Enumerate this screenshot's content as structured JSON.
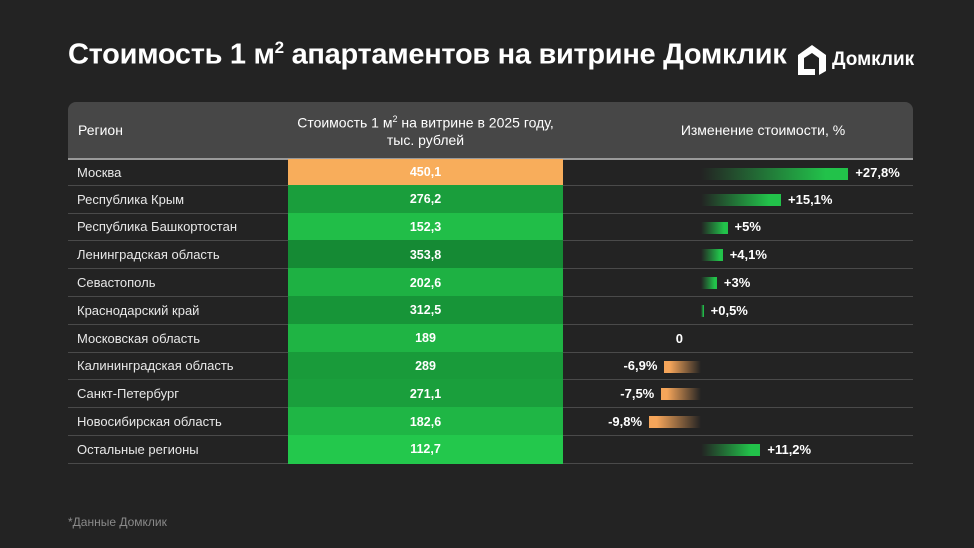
{
  "header": {
    "title_pre": "Стоимость 1 м",
    "title_sup": "2",
    "title_post": " апартаментов на витрине Домклик",
    "logo_text": "Домклик"
  },
  "table": {
    "col_region": "Регион",
    "col_value_pre": "Стоимость 1 м",
    "col_value_sup": "2",
    "col_value_post": " на витрине в 2025 году, тыс. рублей",
    "col_change": "Изменение стоимости, %"
  },
  "colors": {
    "highlight": "#f8ad5b",
    "positive": "#22c24a",
    "negative": "#f5a55a",
    "header_bg": "#474747",
    "background": "#232323"
  },
  "chart_data": {
    "type": "table",
    "columns": [
      "Регион",
      "Стоимость 1 м2 на витрине в 2025 году, тыс. рублей",
      "Изменение стоимости, %"
    ],
    "rows": [
      {
        "region": "Москва",
        "value": "450,1",
        "change": 27.8,
        "change_label": "+27,8%",
        "highlight": true
      },
      {
        "region": "Республика Крым",
        "value": "276,2",
        "change": 15.1,
        "change_label": "+15,1%"
      },
      {
        "region": "Республика Башкортостан",
        "value": "152,3",
        "change": 5,
        "change_label": "+5%"
      },
      {
        "region": "Ленинградская область",
        "value": "353,8",
        "change": 4.1,
        "change_label": "+4,1%"
      },
      {
        "region": "Севастополь",
        "value": "202,6",
        "change": 3,
        "change_label": "+3%"
      },
      {
        "region": "Краснодарский край",
        "value": "312,5",
        "change": 0.5,
        "change_label": "+0,5%"
      },
      {
        "region": "Московская область",
        "value": "189",
        "change": 0,
        "change_label": "0"
      },
      {
        "region": "Калининградская область",
        "value": "289",
        "change": -6.9,
        "change_label": "-6,9%"
      },
      {
        "region": "Санкт-Петербург",
        "value": "271,1",
        "change": -7.5,
        "change_label": "-7,5%"
      },
      {
        "region": "Новосибирская область",
        "value": "182,6",
        "change": -9.8,
        "change_label": "-9,8%"
      },
      {
        "region": "Остальные регионы",
        "value": "112,7",
        "change": 11.2,
        "change_label": "+11,2%"
      }
    ]
  },
  "footnote": "*Данные Домклик"
}
